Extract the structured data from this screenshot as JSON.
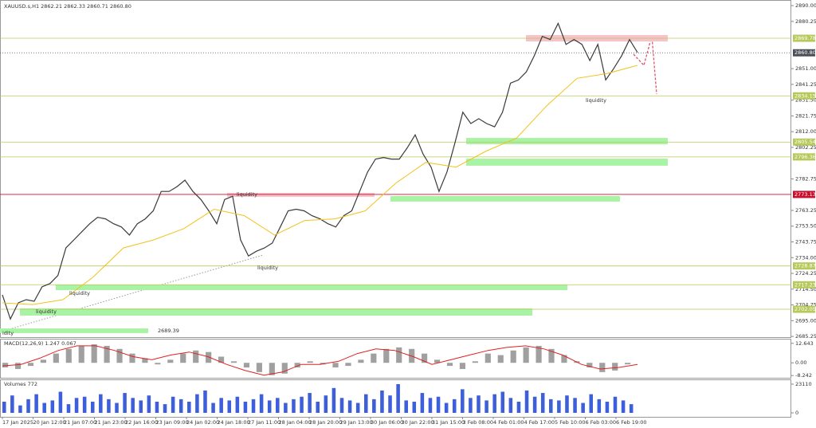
{
  "header": {
    "symbol_line": "XAUUSD.s,H1  2862.21 2862.33 2860.71 2860.80"
  },
  "time_labels": [
    "17 Jan 2025",
    "20 Jan 12:00",
    "21 Jan 07:00",
    "21 Jan 23:00",
    "22 Jan 16:00",
    "23 Jan 09:00",
    "24 Jan 02:00",
    "24 Jan 18:00",
    "27 Jan 11:00",
    "28 Jan 04:00",
    "28 Jan 20:00",
    "29 Jan 13:00",
    "30 Jan 06:00",
    "30 Jan 22:00",
    "31 Jan 15:00",
    "3 Feb 08:00",
    "4 Feb 01:00",
    "4 Feb 17:00",
    "5 Feb 10:00",
    "6 Feb 03:00",
    "6 Feb 19:00"
  ],
  "chart_data": [
    {
      "type": "line",
      "ylim": [
        2684.8,
        2891.5
      ],
      "yticks": [
        {
          "value": 2890,
          "label": "2890.00"
        },
        {
          "value": 2880.25,
          "label": "2880.25"
        },
        {
          "value": 2851,
          "label": "2851.00"
        },
        {
          "value": 2841.25,
          "label": "2841.25"
        },
        {
          "value": 2831.5,
          "label": "2831.50"
        },
        {
          "value": 2821.75,
          "label": "2821.75"
        },
        {
          "value": 2812,
          "label": "2812.00"
        },
        {
          "value": 2802.25,
          "label": "2802.25"
        },
        {
          "value": 2782.75,
          "label": "2782.75"
        },
        {
          "value": 2763.25,
          "label": "2763.25"
        },
        {
          "value": 2753.5,
          "label": "2753.50"
        },
        {
          "value": 2743.75,
          "label": "2743.75"
        },
        {
          "value": 2734,
          "label": "2734.00"
        },
        {
          "value": 2724.25,
          "label": "2724.25"
        },
        {
          "value": 2714.5,
          "label": "2714.50"
        },
        {
          "value": 2704.75,
          "label": "2704.75"
        },
        {
          "value": 2695,
          "label": "2695.00"
        },
        {
          "value": 2685.25,
          "label": "2685.25"
        }
      ],
      "series": [
        {
          "name": "Close",
          "color": "#3a3a3a",
          "values": [
            2711,
            2696,
            2706,
            2708,
            2707,
            2716,
            2718,
            2723,
            2740,
            2745,
            2750,
            2755,
            2759,
            2758,
            2755,
            2753,
            2748,
            2755,
            2758,
            2763,
            2775,
            2775,
            2778,
            2782,
            2775,
            2770,
            2763,
            2755,
            2770,
            2772,
            2745,
            2735,
            2738,
            2740,
            2743,
            2753,
            2763,
            2764,
            2763,
            2760,
            2758,
            2755,
            2753,
            2760,
            2763,
            2775,
            2787,
            2795,
            2796,
            2795,
            2795,
            2802,
            2810,
            2798,
            2790,
            2775,
            2787,
            2805,
            2824,
            2817,
            2820,
            2817,
            2815,
            2824,
            2842,
            2844,
            2849,
            2859,
            2871,
            2869,
            2879,
            2866,
            2869,
            2866,
            2856,
            2866,
            2844,
            2851,
            2859,
            2869,
            2861
          ]
        },
        {
          "name": "MA",
          "color": "#f2c21b",
          "values": [
            2706,
            2705,
            2708,
            2722,
            2740,
            2745,
            2752,
            2764,
            2760,
            2748,
            2757,
            2758,
            2763,
            2780,
            2793,
            2790,
            2800,
            2808,
            2828,
            2845,
            2848,
            2853
          ]
        }
      ],
      "levels": [
        {
          "value": 2869.78,
          "label": "2869.78",
          "color": "#b7c95a"
        },
        {
          "value": 2860.8,
          "label": "2860.80",
          "color": "#4a4f57"
        },
        {
          "value": 2834.15,
          "label": "2834.15",
          "color": "#b7c95a"
        },
        {
          "value": 2805.54,
          "label": "2805.54",
          "color": "#b7c95a"
        },
        {
          "value": 2796.36,
          "label": "2796.36",
          "color": "#b7c95a"
        },
        {
          "value": 2773.13,
          "label": "2773.13",
          "color": "#c8102e"
        },
        {
          "value": 2728.87,
          "label": "2728.87",
          "color": "#b7c95a"
        },
        {
          "value": 2717.23,
          "label": "2717.23",
          "color": "#b7c95a"
        },
        {
          "value": 2702.05,
          "label": "2702.05",
          "color": "#b7c95a"
        }
      ],
      "zones": [
        {
          "top": 2871.8,
          "bottom": 2867.8,
          "color": "#f6c3cb"
        },
        {
          "top": 2808.1,
          "bottom": 2804.2,
          "color": "#a9f3a5"
        },
        {
          "top": 2795.3,
          "bottom": 2790.9,
          "color": "#a9f3a5"
        },
        {
          "top": 2774.1,
          "bottom": 2771.6,
          "color": "#f6c3cb"
        },
        {
          "top": 2772.1,
          "bottom": 2768.7,
          "color": "#a9f3a5"
        },
        {
          "top": 2717.3,
          "bottom": 2713.9,
          "color": "#a9f3a5"
        },
        {
          "top": 2702.6,
          "bottom": 2698.1,
          "color": "#a9f3a5"
        },
        {
          "top": 2690.2,
          "bottom": 2687.3,
          "color": "#a9f3a5"
        }
      ],
      "annotations": [
        "liquidity",
        "liquidity",
        "liquidity",
        "liquidity",
        "liquidity",
        "idity",
        "2689.39"
      ]
    },
    {
      "type": "bar",
      "title": "MACD(12,26,9) 1.247 0.067",
      "ylim": [
        -9.7,
        15.1
      ],
      "yticks": [
        {
          "value": 12.643,
          "label": "12.643"
        },
        {
          "value": 0,
          "label": "0.00"
        },
        {
          "value": -8.242,
          "label": "-8.242"
        }
      ],
      "series": [
        {
          "name": "Histogram",
          "color": "#a0a0a0",
          "values": [
            -3,
            -4,
            -2,
            2,
            6,
            9,
            11,
            12,
            11,
            9,
            6,
            3,
            -1,
            2,
            6,
            8,
            7,
            4,
            1,
            -3,
            -6,
            -8,
            -7,
            -3,
            1,
            -1,
            -3,
            -2,
            2,
            6,
            9,
            10,
            9,
            6,
            2,
            -2,
            -4,
            1,
            6,
            5,
            8,
            10,
            11,
            9,
            5,
            1,
            -3,
            -6,
            -5,
            -1
          ]
        },
        {
          "name": "Signal",
          "color": "#e02020",
          "values": [
            -2,
            -1,
            3,
            8,
            11,
            11,
            8,
            4,
            2,
            5,
            7,
            4,
            -1,
            -5,
            -8,
            -6,
            -1,
            -1,
            1,
            6,
            9,
            8,
            4,
            -1,
            2,
            5,
            8,
            10,
            11,
            9,
            5,
            -1,
            -4,
            -3,
            -1
          ]
        }
      ]
    },
    {
      "type": "bar",
      "title": "Volumes 772",
      "ylim": [
        -3200,
        26300
      ],
      "yticks": [
        {
          "value": 23110,
          "label": "23110"
        },
        0
      ],
      "series": [
        {
          "name": "Volume",
          "color": "#3d5fd9",
          "values": [
            9000,
            14000,
            6000,
            11000,
            15000,
            8000,
            10000,
            17000,
            7000,
            12000,
            13000,
            9000,
            15000,
            11000,
            8000,
            16000,
            12000,
            10000,
            14000,
            9000,
            7000,
            13000,
            11000,
            9000,
            15000,
            18000,
            8000,
            12000,
            10000,
            13000,
            9000,
            11000,
            15000,
            10000,
            12000,
            8000,
            11000,
            13000,
            16000,
            9000,
            14000,
            20000,
            12000,
            10000,
            8000,
            15000,
            11000,
            18000,
            14000,
            23110,
            10000,
            9000,
            16000,
            12000,
            13000,
            8000,
            11000,
            19000,
            12000,
            14000,
            10000,
            15000,
            17000,
            12000,
            9000,
            18000,
            13000,
            16000,
            11000,
            10000,
            14000,
            12000,
            8000,
            15000,
            11000,
            9000,
            13000,
            10000,
            7000
          ]
        }
      ]
    }
  ]
}
